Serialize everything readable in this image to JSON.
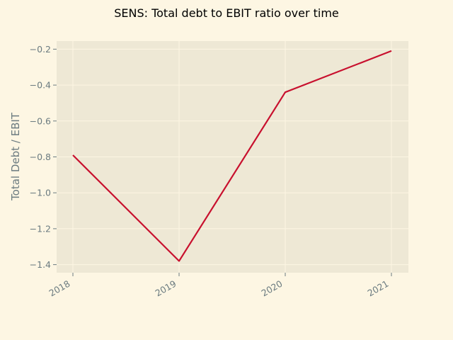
{
  "chart_data": {
    "type": "line",
    "title": "SENS: Total debt to EBIT ratio over time",
    "xlabel": "",
    "ylabel": "Total Debt / EBIT",
    "categories": [
      "2018",
      "2019",
      "2020",
      "2021"
    ],
    "series": [
      {
        "values": [
          -0.79,
          -1.38,
          -0.44,
          -0.21
        ]
      }
    ],
    "yticks": [
      -0.2,
      -0.4,
      -0.6,
      -0.8,
      -1.0,
      -1.2,
      -1.4
    ],
    "ytick_labels": [
      "−0.2",
      "−0.4",
      "−0.6",
      "−0.8",
      "−1.0",
      "−1.2",
      "−1.4"
    ],
    "ylim": [
      -1.445,
      -0.155
    ],
    "grid": true,
    "colors": {
      "background": "#fdf6e3",
      "plot_area": "#eee8d5",
      "grid": "#fdf6e3",
      "line": "#c8102e",
      "tick_text": "#6b7b80"
    }
  }
}
